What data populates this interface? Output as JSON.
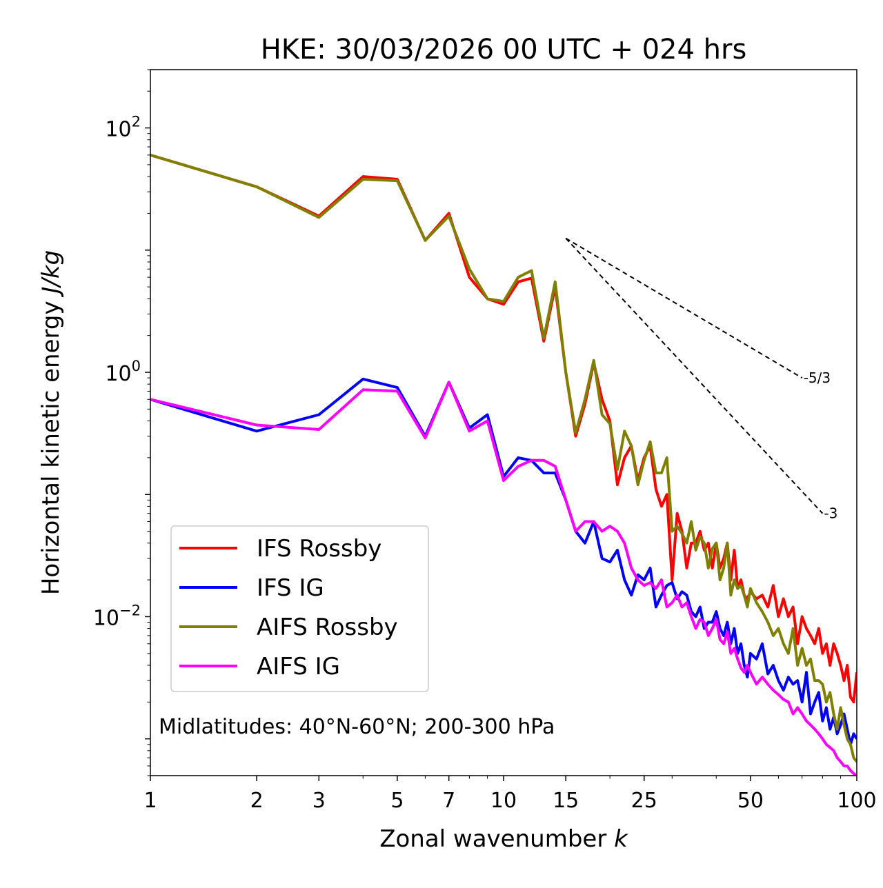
{
  "chart_data": {
    "type": "line",
    "title": "HKE: 30/03/2026 00 UTC + 024 hrs",
    "xlabel_text": "Zonal wavenumber ",
    "xlabel_var": "k",
    "ylabel_text": "Horizontal kinetic energy ",
    "ylabel_unit": "J/kg",
    "xscale": "log",
    "yscale": "log",
    "xlim": [
      1,
      100
    ],
    "ylim": [
      0.0005,
      300
    ],
    "xticks": [
      1,
      2,
      3,
      5,
      7,
      10,
      15,
      25,
      50,
      100
    ],
    "xtick_labels": [
      "1",
      "2",
      "3",
      "5",
      "7",
      "10",
      "15",
      "25",
      "50",
      "100"
    ],
    "yticks": [
      {
        "value": 100,
        "base": "10",
        "exp": "2"
      },
      {
        "value": 1,
        "base": "10",
        "exp": "0"
      },
      {
        "value": 0.01,
        "base": "10",
        "exp": "−2"
      }
    ],
    "annotation": "Midlatitudes: 40°N-60°N; 200-300 hPa",
    "reference_slopes": [
      {
        "label": "-5/3",
        "x": [
          15,
          70
        ],
        "y": [
          12.5,
          0.9
        ]
      },
      {
        "label": "-3",
        "x": [
          15,
          80
        ],
        "y": [
          12.5,
          0.07
        ]
      }
    ],
    "legend_position": "lower-left",
    "series": [
      {
        "name": "IFS Rossby",
        "color": "#ff0000",
        "x": [
          1,
          2,
          3,
          4,
          5,
          6,
          7,
          8,
          9,
          10,
          11,
          12,
          13,
          14,
          15,
          16,
          17,
          18,
          19,
          20,
          21,
          22,
          23,
          24,
          25,
          26,
          27,
          28,
          29,
          30,
          31,
          32,
          33,
          34,
          35,
          36,
          37,
          38,
          39,
          40,
          41,
          42,
          43,
          44,
          45,
          46,
          47,
          48,
          49,
          50,
          52,
          54,
          56,
          58,
          60,
          62,
          64,
          66,
          68,
          70,
          72,
          74,
          76,
          78,
          80,
          82,
          84,
          86,
          88,
          90,
          92,
          94,
          96,
          98,
          100
        ],
        "y": [
          60,
          33,
          19,
          40,
          38,
          12,
          20,
          6,
          4,
          3.6,
          5.5,
          5.9,
          1.8,
          5,
          1.0,
          0.3,
          0.55,
          1.2,
          0.6,
          0.4,
          0.12,
          0.2,
          0.25,
          0.13,
          0.2,
          0.25,
          0.11,
          0.08,
          0.1,
          0.02,
          0.07,
          0.05,
          0.025,
          0.04,
          0.04,
          0.05,
          0.035,
          0.04,
          0.025,
          0.04,
          0.025,
          0.03,
          0.04,
          0.02,
          0.035,
          0.017,
          0.02,
          0.015,
          0.014,
          0.016,
          0.014,
          0.015,
          0.012,
          0.018,
          0.01,
          0.014,
          0.01,
          0.012,
          0.006,
          0.01,
          0.008,
          0.007,
          0.006,
          0.008,
          0.005,
          0.006,
          0.004,
          0.006,
          0.005,
          0.004,
          0.003,
          0.004,
          0.0022,
          0.002,
          0.0035
        ]
      },
      {
        "name": "IFS IG",
        "color": "#0000ff",
        "x": [
          1,
          2,
          3,
          4,
          5,
          6,
          7,
          8,
          9,
          10,
          11,
          12,
          13,
          14,
          15,
          16,
          17,
          18,
          19,
          20,
          21,
          22,
          23,
          24,
          25,
          26,
          27,
          28,
          29,
          30,
          31,
          32,
          33,
          34,
          35,
          36,
          37,
          38,
          39,
          40,
          41,
          42,
          43,
          44,
          45,
          46,
          47,
          48,
          49,
          50,
          52,
          54,
          56,
          58,
          60,
          62,
          64,
          66,
          68,
          70,
          72,
          74,
          76,
          78,
          80,
          82,
          84,
          86,
          88,
          90,
          92,
          94,
          96,
          98,
          100
        ],
        "y": [
          0.6,
          0.33,
          0.45,
          0.88,
          0.75,
          0.3,
          0.83,
          0.35,
          0.45,
          0.14,
          0.2,
          0.19,
          0.15,
          0.15,
          0.09,
          0.05,
          0.04,
          0.06,
          0.03,
          0.028,
          0.035,
          0.02,
          0.015,
          0.022,
          0.02,
          0.025,
          0.012,
          0.015,
          0.018,
          0.019,
          0.014,
          0.016,
          0.015,
          0.011,
          0.01,
          0.012,
          0.008,
          0.009,
          0.009,
          0.011,
          0.008,
          0.007,
          0.009,
          0.006,
          0.008,
          0.005,
          0.006,
          0.004,
          0.0032,
          0.005,
          0.0045,
          0.006,
          0.0034,
          0.004,
          0.003,
          0.0025,
          0.0032,
          0.0028,
          0.003,
          0.002,
          0.0035,
          0.0016,
          0.002,
          0.0024,
          0.0014,
          0.0018,
          0.0012,
          0.0015,
          0.0011,
          0.0013,
          0.0016,
          0.0012,
          0.0009,
          0.0011,
          0.001
        ]
      },
      {
        "name": "AIFS Rossby",
        "color": "#808000",
        "x": [
          1,
          2,
          3,
          4,
          5,
          6,
          7,
          8,
          9,
          10,
          11,
          12,
          13,
          14,
          15,
          16,
          17,
          18,
          19,
          20,
          21,
          22,
          23,
          24,
          25,
          26,
          27,
          28,
          29,
          30,
          31,
          32,
          33,
          34,
          35,
          36,
          37,
          38,
          39,
          40,
          41,
          42,
          43,
          44,
          45,
          46,
          47,
          48,
          49,
          50,
          52,
          54,
          56,
          58,
          60,
          62,
          64,
          66,
          68,
          70,
          72,
          74,
          76,
          78,
          80,
          82,
          84,
          86,
          88,
          90,
          92,
          94,
          96,
          98,
          100
        ],
        "y": [
          60,
          33,
          18.5,
          38,
          37,
          12,
          19,
          7,
          4,
          3.8,
          6,
          6.8,
          1.9,
          5.5,
          1.0,
          0.32,
          0.6,
          1.25,
          0.45,
          0.38,
          0.16,
          0.33,
          0.25,
          0.12,
          0.19,
          0.27,
          0.15,
          0.15,
          0.2,
          0.05,
          0.055,
          0.048,
          0.04,
          0.06,
          0.035,
          0.045,
          0.04,
          0.025,
          0.036,
          0.04,
          0.02,
          0.025,
          0.04,
          0.015,
          0.02,
          0.017,
          0.018,
          0.015,
          0.012,
          0.017,
          0.013,
          0.011,
          0.009,
          0.007,
          0.008,
          0.006,
          0.005,
          0.008,
          0.004,
          0.0055,
          0.004,
          0.0045,
          0.003,
          0.003,
          0.0028,
          0.002,
          0.0024,
          0.0016,
          0.0012,
          0.0018,
          0.0013,
          0.001,
          0.0009,
          0.0007,
          0.00065
        ]
      },
      {
        "name": "AIFS IG",
        "color": "#ff00ff",
        "x": [
          1,
          2,
          3,
          4,
          5,
          6,
          7,
          8,
          9,
          10,
          11,
          12,
          13,
          14,
          15,
          16,
          17,
          18,
          19,
          20,
          21,
          22,
          23,
          24,
          25,
          26,
          27,
          28,
          29,
          30,
          31,
          32,
          33,
          34,
          35,
          36,
          37,
          38,
          39,
          40,
          41,
          42,
          43,
          44,
          45,
          46,
          47,
          48,
          49,
          50,
          52,
          54,
          56,
          58,
          60,
          62,
          64,
          66,
          68,
          70,
          72,
          74,
          76,
          78,
          80,
          82,
          84,
          86,
          88,
          90,
          92,
          94,
          96,
          98,
          100
        ],
        "y": [
          0.6,
          0.37,
          0.34,
          0.72,
          0.7,
          0.29,
          0.83,
          0.33,
          0.4,
          0.13,
          0.17,
          0.19,
          0.19,
          0.17,
          0.09,
          0.05,
          0.06,
          0.06,
          0.05,
          0.055,
          0.05,
          0.04,
          0.025,
          0.02,
          0.018,
          0.019,
          0.017,
          0.02,
          0.012,
          0.013,
          0.015,
          0.012,
          0.013,
          0.01,
          0.008,
          0.0095,
          0.009,
          0.007,
          0.008,
          0.0095,
          0.0065,
          0.006,
          0.0075,
          0.005,
          0.0055,
          0.0045,
          0.0038,
          0.0035,
          0.004,
          0.0035,
          0.0028,
          0.0032,
          0.0028,
          0.0025,
          0.0023,
          0.0021,
          0.002,
          0.0016,
          0.0018,
          0.0016,
          0.0014,
          0.0013,
          0.0012,
          0.0011,
          0.001,
          0.0009,
          0.00085,
          0.0008,
          0.0007,
          0.00065,
          0.0006,
          0.0006,
          0.00055,
          0.00052,
          0.0005
        ]
      }
    ]
  }
}
